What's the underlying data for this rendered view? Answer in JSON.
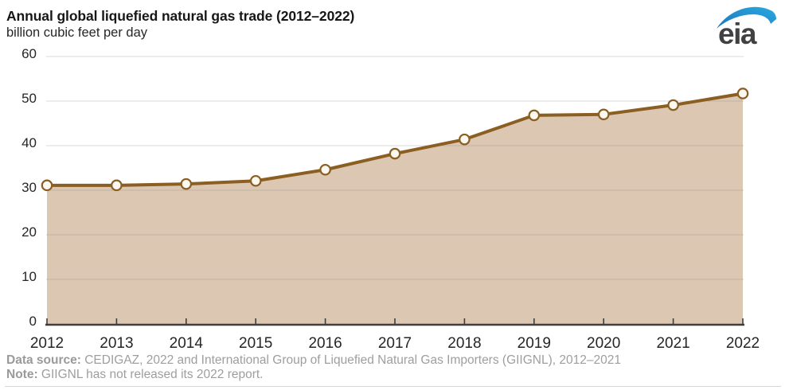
{
  "header": {
    "title": "Annual global liquefied natural gas trade (2012–2022)",
    "subtitle": "billion cubic feet per day"
  },
  "logo": {
    "text": "eia",
    "text_color": "#414042",
    "swoosh_color_dark": "#1b75bc",
    "swoosh_color_light": "#2aa9e0"
  },
  "chart_data": {
    "type": "area",
    "title": "Annual global liquefied natural gas trade (2012–2022)",
    "ylabel": "billion cubic feet per day",
    "xlabel": "",
    "categories": [
      "2012",
      "2013",
      "2014",
      "2015",
      "2016",
      "2017",
      "2018",
      "2019",
      "2020",
      "2021",
      "2022"
    ],
    "values": [
      31.1,
      31.1,
      31.4,
      32.1,
      34.6,
      38.2,
      41.4,
      46.8,
      47.0,
      49.1,
      51.7
    ],
    "ylim": [
      0,
      60
    ],
    "yticks": [
      0,
      10,
      20,
      30,
      40,
      50,
      60
    ],
    "grid": true,
    "legend": false,
    "marker": "open-circle",
    "colors": {
      "line": "#8B5E22",
      "area": "#DCC7B2",
      "marker_fill": "#FBF8F2",
      "grid": "#8c8c8c",
      "axis": "#3f3f3f",
      "tick_label": "#262626"
    }
  },
  "footer": {
    "source_label": "Data source:",
    "source_text": " CEDIGAZ, 2022 and International Group of Liquefied Natural Gas Importers (GIIGNL), 2012–2021",
    "note_label": "Note:",
    "note_text": " GIIGNL has not released its 2022 report."
  }
}
